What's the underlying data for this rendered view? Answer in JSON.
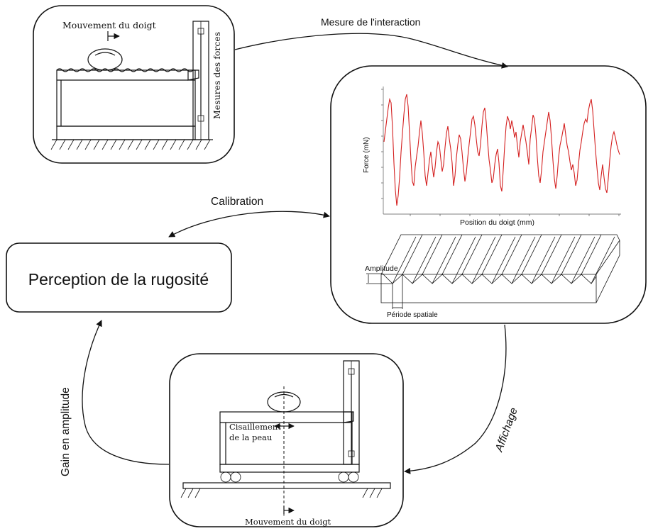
{
  "arrows": {
    "measure": "Mesure de l'interaction",
    "calibration": "Calibration",
    "display": "Affichage",
    "gain": "Gain en amplitude"
  },
  "perception": {
    "label": "Perception de la rugosité"
  },
  "measurement_device": {
    "finger_motion": "Mouvement du doigt",
    "force_sensor": "Mesures des forces"
  },
  "display_device": {
    "shear": [
      "Cisaillement",
      "de la peau"
    ],
    "finger_motion": "Mouvement du doigt"
  },
  "plot": {
    "ylabel": "Force (mN)",
    "xlabel": "Position du doigt (mm)",
    "signal_color": "#d42020"
  },
  "texture": {
    "amplitude": "Amplitude",
    "period": "Période spatiale"
  }
}
